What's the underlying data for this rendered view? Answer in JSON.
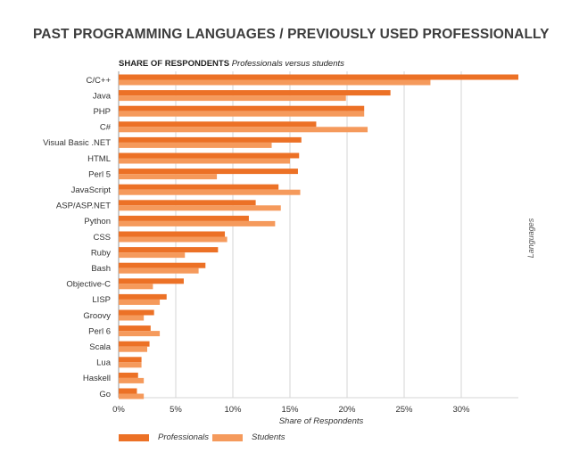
{
  "page_title": "PAST PROGRAMMING LANGUAGES / PREVIOUSLY USED PROFESSIONALLY",
  "subtitle": {
    "strong": "SHARE OF RESPONDENTS",
    "em": "Professionals versus students"
  },
  "colors": {
    "professionals": "#ec7126",
    "students": "#f59a5c",
    "grid": "#d6d6d6",
    "axis": "#9a9a9a"
  },
  "chart_data": {
    "type": "bar",
    "orientation": "horizontal",
    "title": "PAST PROGRAMMING LANGUAGES / PREVIOUSLY USED PROFESSIONALLY",
    "subtitle": "SHARE OF RESPONDENTS Professionals versus students",
    "xlabel": "Share of Respondents",
    "ylabel": "Languages",
    "xlim": [
      0,
      35
    ],
    "xticks": [
      0,
      5,
      10,
      15,
      20,
      25,
      30
    ],
    "xtick_labels": [
      "0%",
      "5%",
      "10%",
      "15%",
      "20%",
      "25%",
      "30%"
    ],
    "grid": true,
    "legend_position": "bottom-left",
    "categories": [
      "C/C++",
      "Java",
      "PHP",
      "C#",
      "Visual Basic .NET",
      "HTML",
      "Perl 5",
      "JavaScript",
      "ASP/ASP.NET",
      "Python",
      "CSS",
      "Ruby",
      "Bash",
      "Objective-C",
      "LISP",
      "Groovy",
      "Perl 6",
      "Scala",
      "Lua",
      "Haskell",
      "Go"
    ],
    "series": [
      {
        "name": "Professionals",
        "values": [
          35.0,
          23.8,
          21.5,
          17.3,
          16.0,
          15.8,
          15.7,
          14.0,
          12.0,
          11.4,
          9.3,
          8.7,
          7.6,
          5.7,
          4.2,
          3.1,
          2.8,
          2.7,
          2.0,
          1.7,
          1.6
        ]
      },
      {
        "name": "Students",
        "values": [
          27.3,
          19.9,
          21.5,
          21.8,
          13.4,
          15.0,
          8.6,
          15.9,
          14.2,
          13.7,
          9.5,
          5.8,
          7.0,
          3.0,
          3.6,
          2.2,
          3.6,
          2.5,
          2.0,
          2.2,
          2.2
        ]
      }
    ]
  }
}
